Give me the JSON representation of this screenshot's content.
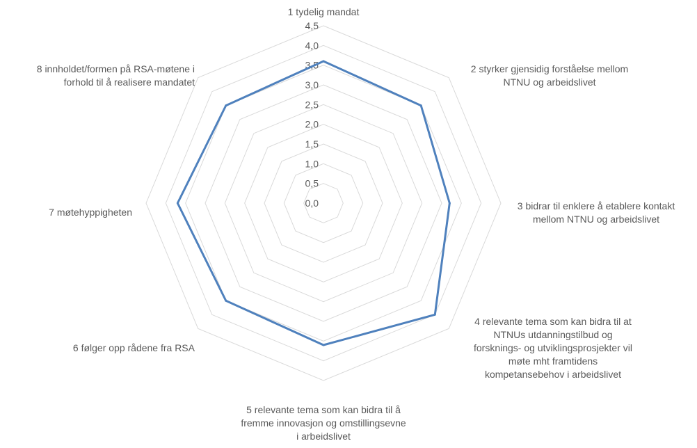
{
  "chart_data": {
    "type": "radar",
    "title": "",
    "categories": [
      [
        "1 tydelig mandat"
      ],
      [
        "2 styrker gjensidig forståelse mellom",
        "NTNU og arbeidslivet"
      ],
      [
        "3 bidrar til enklere å etablere kontakt",
        "mellom NTNU og arbeidslivet"
      ],
      [
        "4 relevante tema som kan bidra til at",
        "NTNUs utdanningstilbud og",
        "forsknings- og utviklingsprosjekter vil",
        "møte  mht framtidens",
        "kompetansebehov i arbeidslivet"
      ],
      [
        "5  relevante tema som kan bidra til å",
        "fremme innovasjon og omstillingsevne",
        "i arbeidslivet"
      ],
      [
        "6 følger opp rådene fra RSA"
      ],
      [
        "7 møtehyppigheten"
      ],
      [
        "8 innholdet/formen på RSA-møtene i",
        "forhold til å realisere mandatet"
      ]
    ],
    "series": [
      {
        "values": [
          3.6,
          3.5,
          3.2,
          4.0,
          3.6,
          3.5,
          3.7,
          3.5
        ],
        "color": "#4f81bd"
      }
    ],
    "rlim": [
      0,
      4.5
    ],
    "ticks": [
      "0,0",
      "0,5",
      "1,0",
      "1,5",
      "2,0",
      "2,5",
      "3,0",
      "3,5",
      "4,0",
      "4,5"
    ],
    "tick_values": [
      0,
      0.5,
      1.0,
      1.5,
      2.0,
      2.5,
      3.0,
      3.5,
      4.0,
      4.5
    ],
    "grid": true,
    "legend": "none",
    "grid_color": "#d9d9d9",
    "text_color": "#595959"
  }
}
